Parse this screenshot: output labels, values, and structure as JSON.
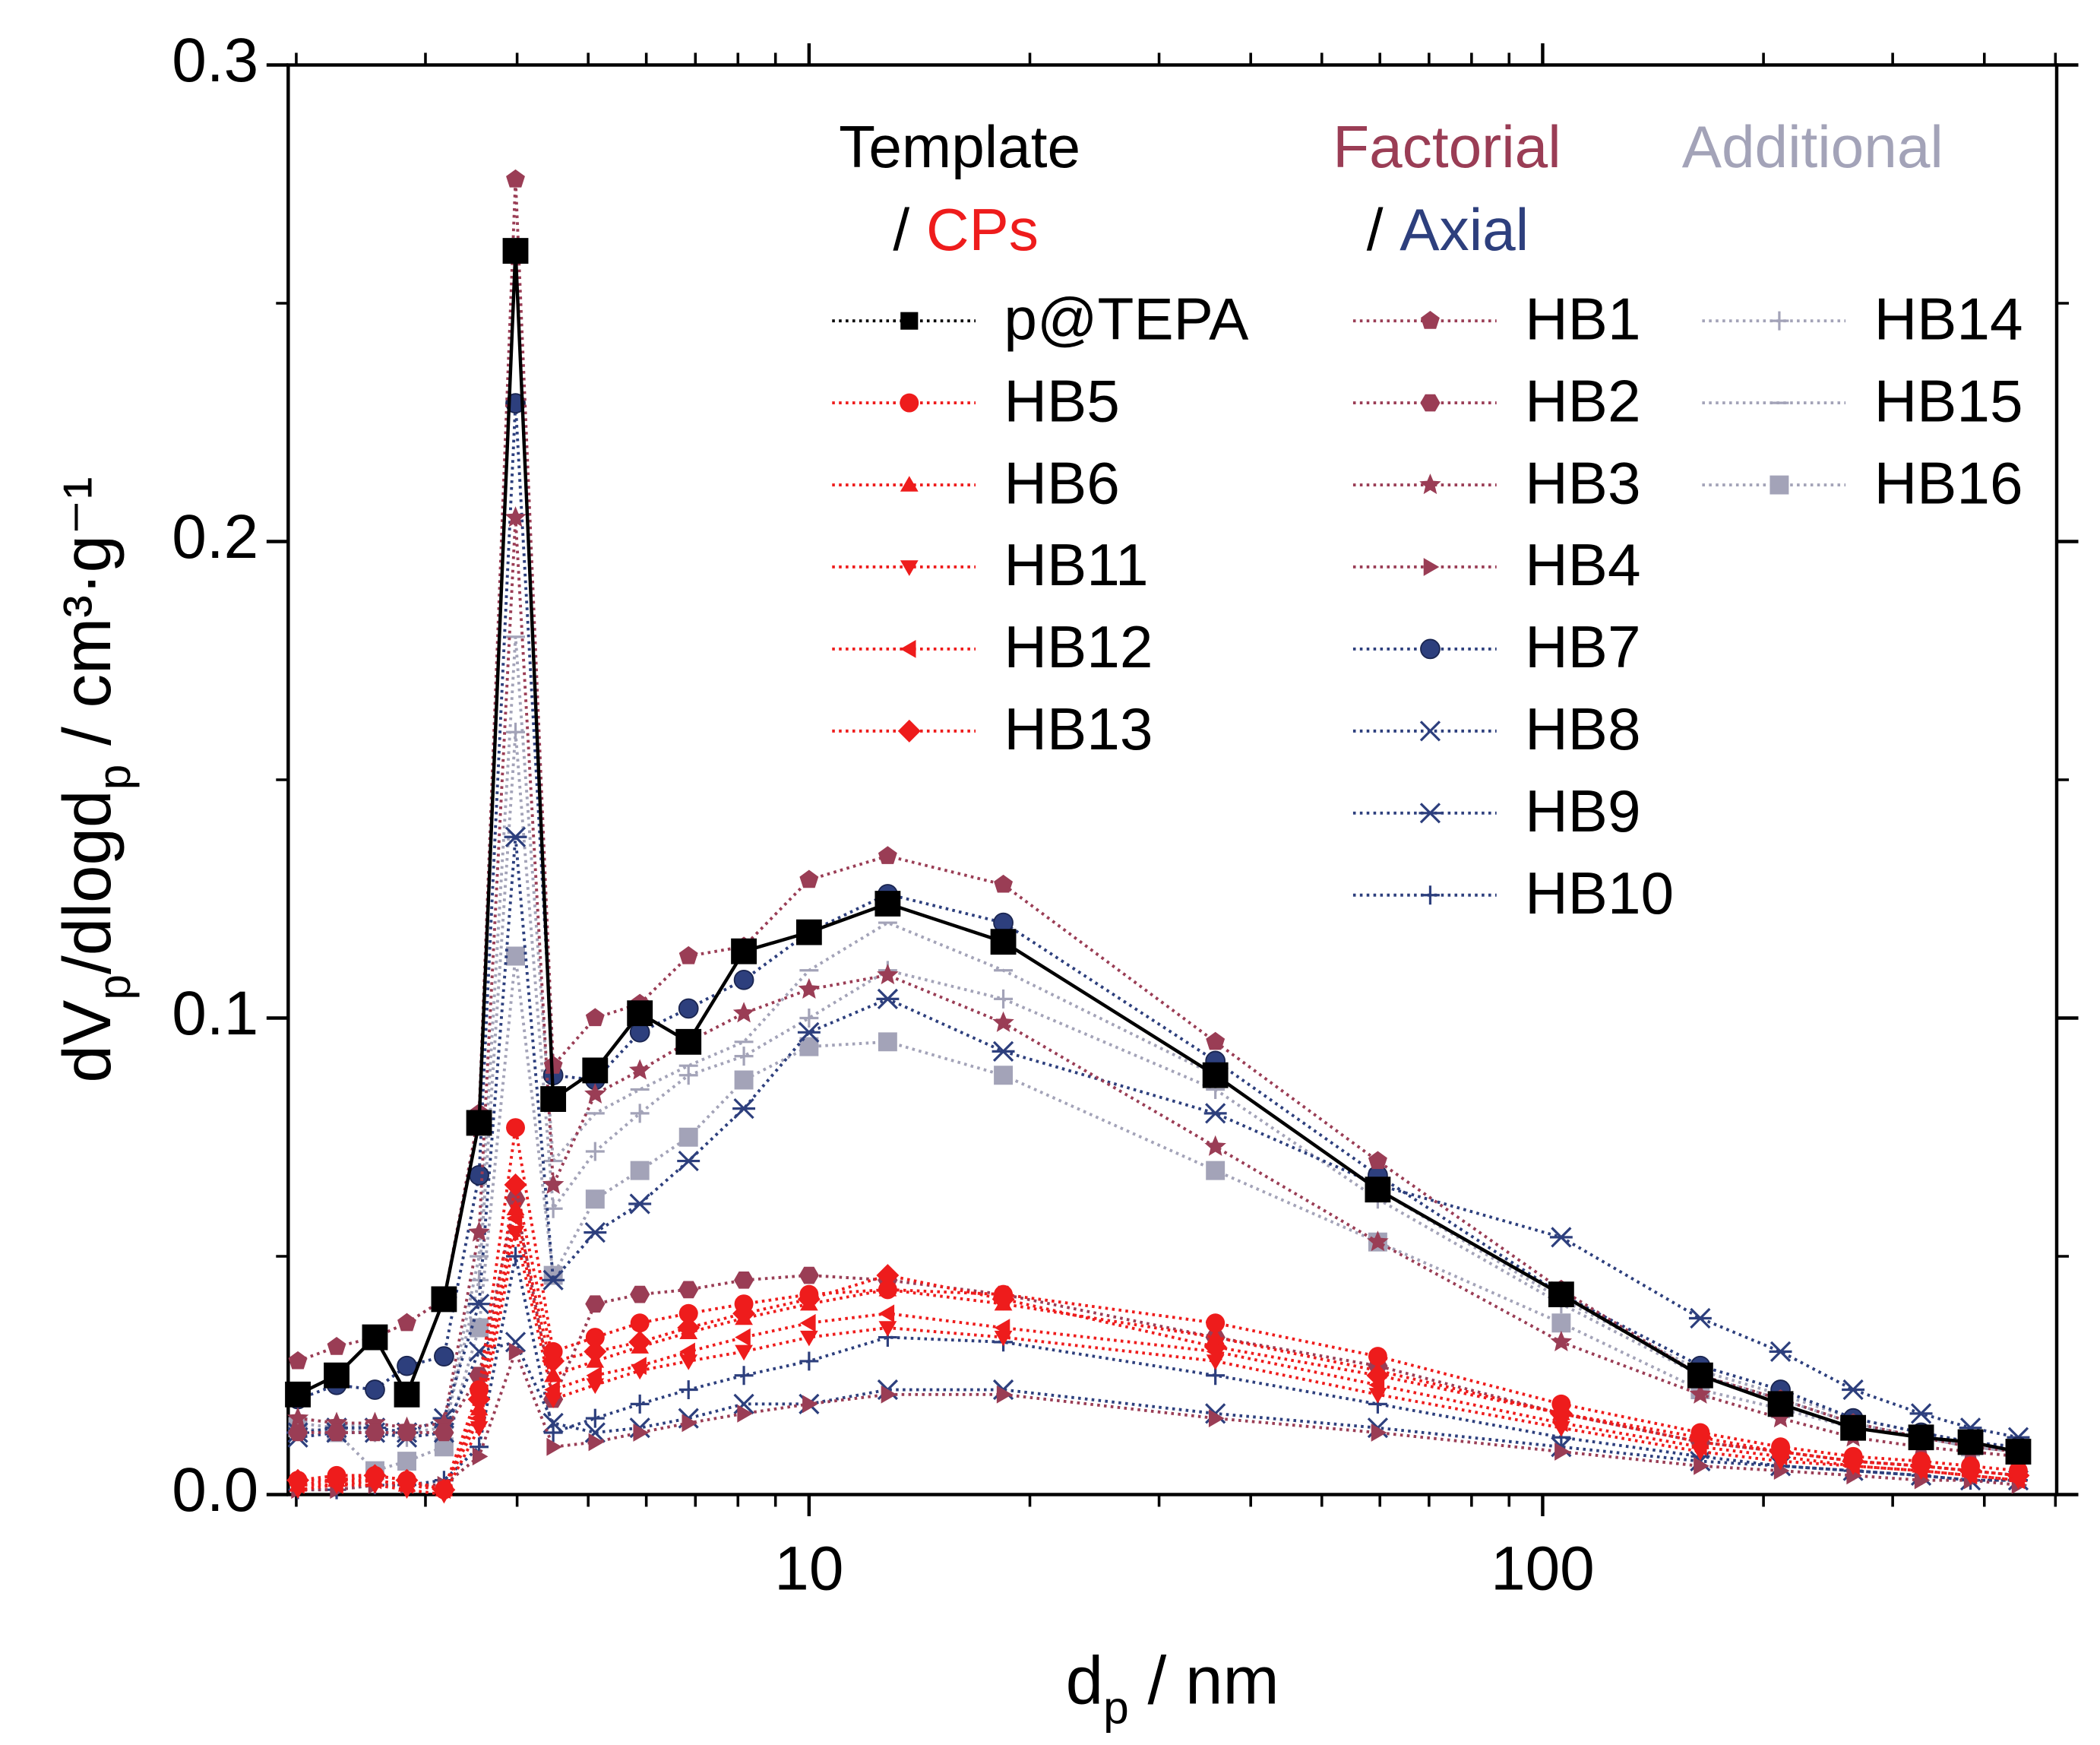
{
  "chart_data": {
    "type": "line",
    "xlabel": [
      {
        "text": "d"
      },
      {
        "text": "p",
        "sub": true
      },
      {
        "text": " / nm"
      }
    ],
    "ylabel": [
      {
        "text": "dV"
      },
      {
        "text": "p",
        "sub": true
      },
      {
        "text": "/dlogd"
      },
      {
        "text": "p",
        "sub": true
      },
      {
        "text": " / cm³·g⁻¹"
      }
    ],
    "x_scale": "log",
    "xlim": [
      1.95,
      502
    ],
    "xticks": [
      10,
      100
    ],
    "xminorticks": [
      2,
      3,
      4,
      5,
      6,
      7,
      8,
      9,
      20,
      30,
      40,
      50,
      60,
      70,
      80,
      90,
      200,
      300,
      400,
      500
    ],
    "ylim": [
      0,
      0.3
    ],
    "yticks": [
      {
        "value": 0,
        "label": "0.0"
      },
      0.1,
      0.2,
      0.3
    ],
    "yminorticks": [
      0.05,
      0.15,
      0.25
    ],
    "legend_separator": "/",
    "legend_groups": [
      {
        "title": "Template",
        "color": "#000000",
        "sub": "CPs",
        "sub_color": "#ee1c1c"
      },
      {
        "title": "Factorial",
        "color": "#9a3d55",
        "sub": "Axial",
        "sub_color": "#2d3f7d"
      },
      {
        "title": "Additional",
        "color": "#a3a3b8"
      }
    ],
    "x": [
      2.01,
      2.27,
      2.56,
      2.83,
      3.18,
      3.55,
      3.98,
      4.48,
      5.11,
      5.88,
      6.85,
      8.15,
      10.0,
      12.8,
      18.4,
      35.8,
      59.6,
      106,
      164,
      211,
      265,
      328,
      383,
      445
    ],
    "series": [
      {
        "name": "p@TEPA",
        "group": 0,
        "color": "#000000",
        "symbol": "square",
        "line": "solid",
        "values": [
          0.021,
          0.025,
          0.033,
          0.021,
          0.041,
          0.078,
          0.261,
          0.083,
          0.089,
          0.101,
          0.095,
          0.114,
          0.118,
          0.124,
          0.116,
          0.088,
          0.064,
          0.042,
          0.025,
          0.019,
          0.014,
          0.012,
          0.011,
          0.009
        ]
      },
      {
        "name": "HB5",
        "group": 0,
        "color": "#ee1c1c",
        "symbol": "circle",
        "line": "dotted",
        "values": [
          0.003,
          0.004,
          0.004,
          0.003,
          0.001,
          0.022,
          0.077,
          0.03,
          0.033,
          0.036,
          0.038,
          0.04,
          0.042,
          0.043,
          0.042,
          0.036,
          0.029,
          0.019,
          0.013,
          0.01,
          0.008,
          0.007,
          0.006,
          0.005
        ]
      },
      {
        "name": "HB6",
        "group": 0,
        "color": "#ee1c1c",
        "symbol": "triup",
        "line": "dotted",
        "values": [
          0.002,
          0.003,
          0.003,
          0.002,
          0.001,
          0.018,
          0.06,
          0.025,
          0.028,
          0.031,
          0.034,
          0.037,
          0.04,
          0.043,
          0.04,
          0.033,
          0.026,
          0.017,
          0.011,
          0.009,
          0.007,
          0.006,
          0.005,
          0.004
        ]
      },
      {
        "name": "HB11",
        "group": 0,
        "color": "#ee1c1c",
        "symbol": "tridown",
        "line": "dotted",
        "values": [
          0.001,
          0.002,
          0.002,
          0.001,
          0.0,
          0.014,
          0.055,
          0.02,
          0.023,
          0.026,
          0.028,
          0.03,
          0.033,
          0.035,
          0.033,
          0.028,
          0.021,
          0.014,
          0.009,
          0.007,
          0.006,
          0.005,
          0.004,
          0.003
        ]
      },
      {
        "name": "HB12",
        "group": 0,
        "color": "#ee1c1c",
        "symbol": "trileft",
        "line": "dotted",
        "values": [
          0.002,
          0.002,
          0.003,
          0.002,
          0.001,
          0.016,
          0.058,
          0.022,
          0.025,
          0.027,
          0.03,
          0.033,
          0.036,
          0.038,
          0.035,
          0.03,
          0.023,
          0.015,
          0.01,
          0.008,
          0.006,
          0.005,
          0.004,
          0.003
        ]
      },
      {
        "name": "HB13",
        "group": 0,
        "color": "#ee1c1c",
        "symbol": "diamond",
        "line": "dotted",
        "values": [
          0.003,
          0.003,
          0.004,
          0.003,
          0.001,
          0.02,
          0.065,
          0.028,
          0.03,
          0.032,
          0.035,
          0.038,
          0.041,
          0.046,
          0.041,
          0.031,
          0.025,
          0.017,
          0.012,
          0.009,
          0.007,
          0.006,
          0.005,
          0.004
        ]
      },
      {
        "name": "HB1",
        "group": 1,
        "color": "#9a3d55",
        "symbol": "pentagon",
        "line": "dotted",
        "values": [
          0.028,
          0.031,
          0.033,
          0.036,
          0.041,
          0.08,
          0.276,
          0.09,
          0.1,
          0.103,
          0.113,
          0.115,
          0.129,
          0.134,
          0.128,
          0.095,
          0.07,
          0.043,
          0.025,
          0.02,
          0.015,
          0.012,
          0.01,
          0.009
        ]
      },
      {
        "name": "HB2",
        "group": 1,
        "color": "#9a3d55",
        "symbol": "hexagon",
        "line": "dotted",
        "values": [
          0.013,
          0.013,
          0.013,
          0.013,
          0.013,
          0.025,
          0.062,
          0.02,
          0.04,
          0.042,
          0.043,
          0.045,
          0.046,
          0.045,
          0.042,
          0.033,
          0.027,
          0.017,
          0.011,
          0.009,
          0.007,
          0.006,
          0.005,
          0.004
        ]
      },
      {
        "name": "HB3",
        "group": 1,
        "color": "#9a3d55",
        "symbol": "star",
        "line": "dotted",
        "values": [
          0.016,
          0.015,
          0.015,
          0.014,
          0.015,
          0.055,
          0.205,
          0.065,
          0.084,
          0.089,
          0.095,
          0.101,
          0.106,
          0.109,
          0.099,
          0.073,
          0.053,
          0.032,
          0.021,
          0.016,
          0.012,
          0.01,
          0.009,
          0.008
        ]
      },
      {
        "name": "HB4",
        "group": 1,
        "color": "#9a3d55",
        "symbol": "triright",
        "line": "dotted",
        "values": [
          0.001,
          0.001,
          0.002,
          0.002,
          0.002,
          0.008,
          0.03,
          0.01,
          0.011,
          0.013,
          0.015,
          0.017,
          0.019,
          0.021,
          0.021,
          0.016,
          0.013,
          0.009,
          0.006,
          0.005,
          0.004,
          0.003,
          0.003,
          0.002
        ]
      },
      {
        "name": "HB7",
        "group": 1,
        "color": "#2d3f7d",
        "symbol": "sphere",
        "line": "dotted",
        "values": [
          0.02,
          0.023,
          0.022,
          0.027,
          0.029,
          0.067,
          0.229,
          0.088,
          0.087,
          0.097,
          0.102,
          0.108,
          0.118,
          0.126,
          0.12,
          0.091,
          0.067,
          0.042,
          0.027,
          0.022,
          0.016,
          0.013,
          0.011,
          0.01
        ]
      },
      {
        "name": "HB8",
        "group": 1,
        "color": "#2d3f7d",
        "symbol": "x",
        "line": "dotted",
        "values": [
          0.012,
          0.013,
          0.013,
          0.012,
          0.013,
          0.03,
          0.032,
          0.015,
          0.013,
          0.014,
          0.016,
          0.019,
          0.019,
          0.022,
          0.022,
          0.017,
          0.014,
          0.01,
          0.007,
          0.006,
          0.005,
          0.004,
          0.003,
          0.003
        ]
      },
      {
        "name": "HB9",
        "group": 1,
        "color": "#2d3f7d",
        "symbol": "asterisk",
        "line": "dotted",
        "values": [
          0.013,
          0.014,
          0.014,
          0.013,
          0.016,
          0.04,
          0.138,
          0.045,
          0.055,
          0.061,
          0.07,
          0.081,
          0.097,
          0.104,
          0.093,
          0.08,
          0.065,
          0.054,
          0.037,
          0.03,
          0.022,
          0.017,
          0.014,
          0.012
        ]
      },
      {
        "name": "HB10",
        "group": 1,
        "color": "#2d3f7d",
        "symbol": "plus",
        "line": "dotted",
        "values": [
          0.001,
          0.001,
          0.002,
          0.002,
          0.003,
          0.01,
          0.05,
          0.013,
          0.016,
          0.019,
          0.022,
          0.025,
          0.028,
          0.033,
          0.032,
          0.025,
          0.019,
          0.012,
          0.008,
          0.006,
          0.005,
          0.004,
          0.003,
          0.003
        ]
      },
      {
        "name": "HB14",
        "group": 2,
        "color": "#a3a3b8",
        "symbol": "plus",
        "line": "dotted",
        "values": [
          0.015,
          0.014,
          0.013,
          0.012,
          0.013,
          0.045,
          0.16,
          0.06,
          0.072,
          0.08,
          0.088,
          0.092,
          0.1,
          0.11,
          0.104,
          0.085,
          0.062,
          0.04,
          0.025,
          0.02,
          0.015,
          0.012,
          0.01,
          0.009
        ]
      },
      {
        "name": "HB15",
        "group": 2,
        "color": "#a3a3b8",
        "symbol": "dash",
        "line": "dotted",
        "values": [
          0.016,
          0.015,
          0.014,
          0.013,
          0.014,
          0.05,
          0.18,
          0.07,
          0.08,
          0.085,
          0.09,
          0.095,
          0.11,
          0.12,
          0.11,
          0.088,
          0.064,
          0.041,
          0.026,
          0.021,
          0.016,
          0.013,
          0.011,
          0.01
        ]
      },
      {
        "name": "HB16",
        "group": 2,
        "color": "#a3a3b8",
        "symbol": "square",
        "line": "dotted",
        "values": [
          0.014,
          0.013,
          0.005,
          0.007,
          0.01,
          0.035,
          0.113,
          0.046,
          0.062,
          0.068,
          0.075,
          0.087,
          0.094,
          0.095,
          0.088,
          0.068,
          0.053,
          0.036,
          0.022,
          0.018,
          0.014,
          0.012,
          0.01,
          0.009
        ]
      }
    ]
  }
}
